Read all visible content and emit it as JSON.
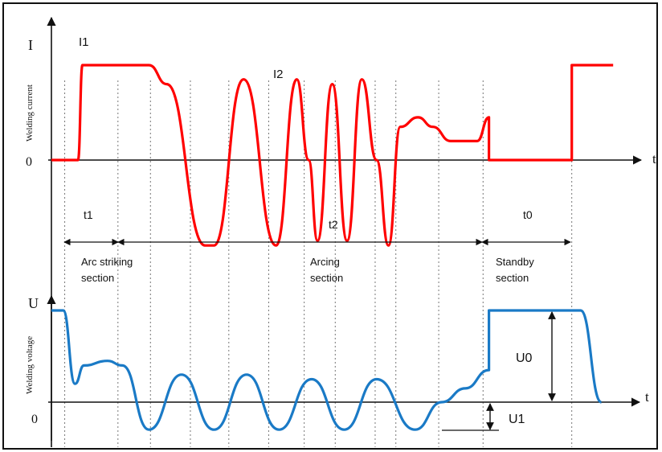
{
  "labels": {
    "current_axis": "I",
    "current_axis_name": "Welding current",
    "current_zero": "0",
    "current_time": "t",
    "voltage_axis": "U",
    "voltage_axis_name": "Welding voltage",
    "voltage_zero": "0",
    "voltage_time": "t",
    "i1": "I1",
    "i2": "I2",
    "t1": "t1",
    "t2": "t2",
    "t0": "t0",
    "u0": "U0",
    "u1": "U1",
    "section_arc_striking_1": "Arc striking",
    "section_arc_striking_2": "section",
    "section_arcing_1": "Arcing",
    "section_arcing_2": "section",
    "section_standby_1": "Standby",
    "section_standby_2": "section"
  },
  "colors": {
    "current": "#ff0000",
    "voltage": "#1a7ac6",
    "axis": "#111111",
    "guide": "#777777"
  },
  "chart_data": [
    {
      "type": "line",
      "title": "",
      "ylabel": "Welding current",
      "xlabel": "t",
      "series": [
        {
          "name": "",
          "x": [
            0,
            0.9,
            1.05,
            3.3,
            3.9,
            5.2,
            5.5,
            6.5,
            7.6,
            8.3,
            8.7,
            9.0,
            9.5,
            10.0,
            10.5,
            11.0,
            11.4,
            11.8,
            12.4,
            12.9,
            13.5,
            14.4,
            14.8,
            14.8,
            16.4,
            17.6,
            17.6,
            19.0
          ],
          "y": [
            0,
            0,
            1.0,
            1.0,
            0.8,
            -0.9,
            -0.9,
            0.85,
            -0.9,
            0.85,
            0,
            -0.85,
            0.8,
            -0.85,
            0.85,
            0,
            -0.9,
            0.35,
            0.45,
            0.35,
            0.2,
            0.2,
            0.45,
            0.0,
            0,
            0,
            1.0,
            1.0
          ]
        }
      ]
    },
    {
      "type": "line",
      "title": "",
      "ylabel": "Welding voltage",
      "xlabel": "t",
      "series": [
        {
          "name": "",
          "x": [
            0,
            0.4,
            0.8,
            1.1,
            1.9,
            2.4,
            3.3,
            4.4,
            5.5,
            6.6,
            7.7,
            8.8,
            9.9,
            11.0,
            12.3,
            13.2,
            14.0,
            14.8,
            14.8,
            17.6,
            17.9,
            18.6
          ],
          "y": [
            1.0,
            1.0,
            0.2,
            0.4,
            0.45,
            0.4,
            -0.3,
            0.3,
            -0.3,
            0.3,
            -0.3,
            0.25,
            -0.3,
            0.25,
            -0.3,
            0.0,
            0.15,
            0.35,
            1.0,
            1.0,
            1.0,
            0
          ]
        }
      ]
    }
  ]
}
